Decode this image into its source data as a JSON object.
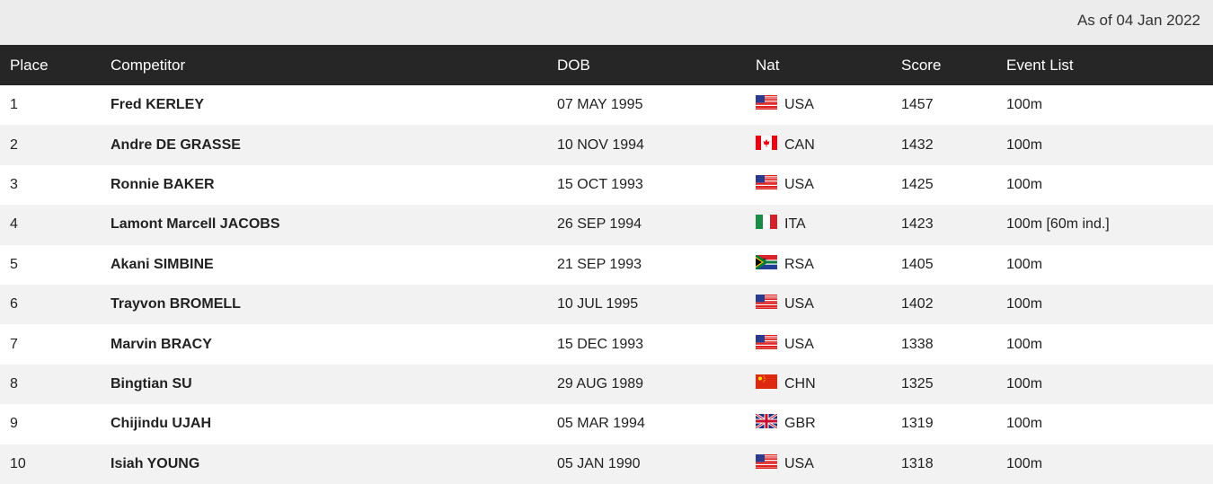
{
  "as_of": "As of 04 Jan 2022",
  "headers": {
    "place": "Place",
    "competitor": "Competitor",
    "dob": "DOB",
    "nat": "Nat",
    "score": "Score",
    "events": "Event List"
  },
  "rows": [
    {
      "place": "1",
      "name": "Fred KERLEY",
      "dob": "07 MAY 1995",
      "nat": "USA",
      "score": "1457",
      "events": "100m"
    },
    {
      "place": "2",
      "name": "Andre DE GRASSE",
      "dob": "10 NOV 1994",
      "nat": "CAN",
      "score": "1432",
      "events": "100m"
    },
    {
      "place": "3",
      "name": "Ronnie BAKER",
      "dob": "15 OCT 1993",
      "nat": "USA",
      "score": "1425",
      "events": "100m"
    },
    {
      "place": "4",
      "name": "Lamont Marcell JACOBS",
      "dob": "26 SEP 1994",
      "nat": "ITA",
      "score": "1423",
      "events": "100m [60m ind.]"
    },
    {
      "place": "5",
      "name": "Akani SIMBINE",
      "dob": "21 SEP 1993",
      "nat": "RSA",
      "score": "1405",
      "events": "100m"
    },
    {
      "place": "6",
      "name": "Trayvon BROMELL",
      "dob": "10 JUL 1995",
      "nat": "USA",
      "score": "1402",
      "events": "100m"
    },
    {
      "place": "7",
      "name": "Marvin BRACY",
      "dob": "15 DEC 1993",
      "nat": "USA",
      "score": "1338",
      "events": "100m"
    },
    {
      "place": "8",
      "name": "Bingtian SU",
      "dob": "29 AUG 1989",
      "nat": "CHN",
      "score": "1325",
      "events": "100m"
    },
    {
      "place": "9",
      "name": "Chijindu UJAH",
      "dob": "05 MAR 1994",
      "nat": "GBR",
      "score": "1319",
      "events": "100m"
    },
    {
      "place": "10",
      "name": "Isiah YOUNG",
      "dob": "05 JAN 1990",
      "nat": "USA",
      "score": "1318",
      "events": "100m"
    }
  ]
}
